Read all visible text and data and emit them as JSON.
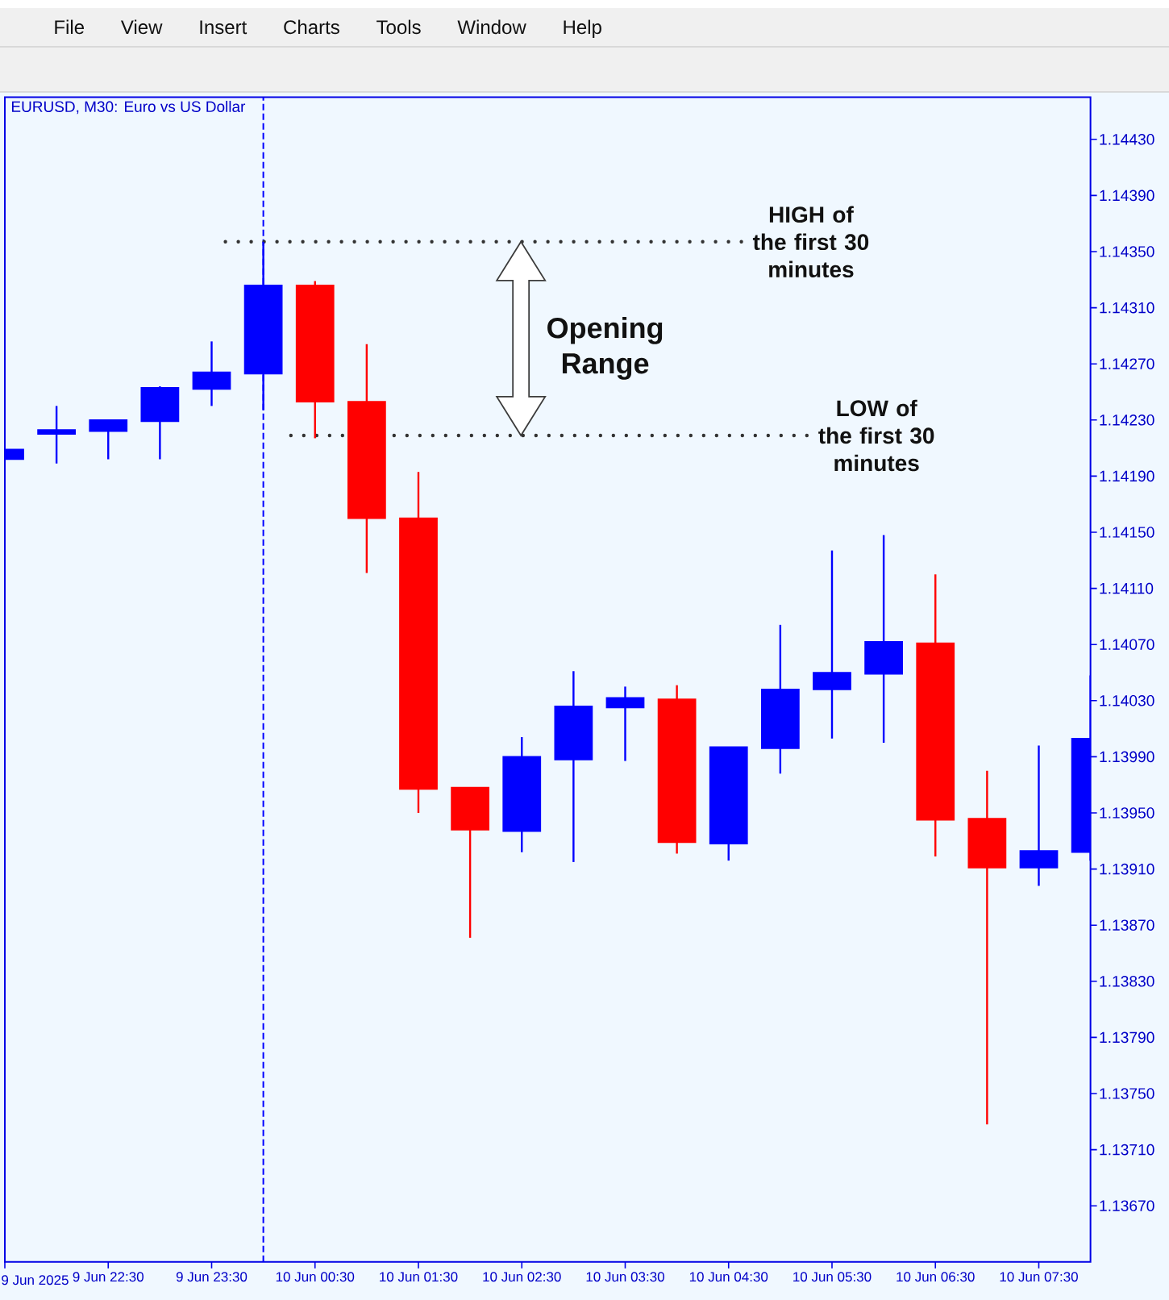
{
  "chart_data": {
    "type": "candlestick",
    "title": "EURUSD, M30: Euro vs US Dollar",
    "x": [
      "2025-06-09T21:30",
      "2025-06-09T22:00",
      "2025-06-09T22:30",
      "2025-06-09T23:00",
      "2025-06-09T23:30",
      "2025-06-10T00:00",
      "2025-06-10T00:30",
      "2025-06-10T01:00",
      "2025-06-10T01:30",
      "2025-06-10T02:00",
      "2025-06-10T02:30",
      "2025-06-10T03:00",
      "2025-06-10T03:30",
      "2025-06-10T04:00",
      "2025-06-10T04:30",
      "2025-06-10T05:00",
      "2025-06-10T05:30",
      "2025-06-10T06:00",
      "2025-06-10T06:30",
      "2025-06-10T07:00",
      "2025-06-10T07:30",
      "2025-06-10T08:00"
    ],
    "series": [
      {
        "type": "candlestick",
        "ohlc": [
          [
            1.14202,
            1.14209,
            1.14202,
            1.14209
          ],
          [
            1.1422,
            1.1424,
            1.14199,
            1.14223
          ],
          [
            1.14222,
            1.1423,
            1.14202,
            1.1423
          ],
          [
            1.14229,
            1.14254,
            1.14202,
            1.14253
          ],
          [
            1.14252,
            1.14286,
            1.1424,
            1.14264
          ],
          [
            1.14263,
            1.14357,
            1.14237,
            1.14326
          ],
          [
            1.14326,
            1.14329,
            1.14217,
            1.14243
          ],
          [
            1.14243,
            1.14284,
            1.14121,
            1.1416
          ],
          [
            1.1416,
            1.14193,
            1.1395,
            1.13967
          ],
          [
            1.13968,
            1.13968,
            1.13861,
            1.13938
          ],
          [
            1.13937,
            1.14004,
            1.13922,
            1.1399
          ],
          [
            1.13988,
            1.14051,
            1.13915,
            1.14026
          ],
          [
            1.14025,
            1.1404,
            1.13987,
            1.14032
          ],
          [
            1.14031,
            1.14041,
            1.13921,
            1.13929
          ],
          [
            1.13928,
            1.13997,
            1.13916,
            1.13997
          ],
          [
            1.13996,
            1.14084,
            1.13978,
            1.14038
          ],
          [
            1.14038,
            1.14137,
            1.14003,
            1.1405
          ],
          [
            1.14049,
            1.14148,
            1.14,
            1.14072
          ],
          [
            1.14071,
            1.1412,
            1.13919,
            1.13945
          ],
          [
            1.13946,
            1.1398,
            1.13728,
            1.13911
          ],
          [
            1.13911,
            1.13998,
            1.13898,
            1.13923
          ],
          [
            1.13922,
            1.14048,
            1.13916,
            1.14003
          ]
        ],
        "colors": [
          "#0000ff",
          "#0000ff",
          "#0000ff",
          "#0000ff",
          "#0000ff",
          "#0000ff",
          "#ff0000",
          "#ff0000",
          "#ff0000",
          "#ff0000",
          "#0000ff",
          "#0000ff",
          "#0000ff",
          "#ff0000",
          "#0000ff",
          "#0000ff",
          "#0000ff",
          "#0000ff",
          "#ff0000",
          "#ff0000",
          "#0000ff",
          "#0000ff"
        ]
      },
      {
        "type": "line",
        "name": "HIGH of the first 30 minutes",
        "x": [
          "2025-06-09T23:38",
          "2025-06-10T04:43"
        ],
        "values": [
          1.14357,
          1.14357
        ],
        "color": "#333333",
        "line_style": "dotted",
        "marker": "none"
      },
      {
        "type": "line",
        "name": "LOW of the first 30 minutes",
        "x": [
          "2025-06-10T00:16",
          "2025-06-10T05:21"
        ],
        "values": [
          1.14219,
          1.14219
        ],
        "color": "#333333",
        "line_style": "dotted",
        "marker": "none"
      }
    ],
    "xlim": [
      "2025-06-09T21:30",
      "2025-06-10T08:00"
    ],
    "xticks": [
      {
        "value": "2025-06-09T21:30",
        "label": "9 Jun 2025"
      },
      {
        "value": "2025-06-09T22:30",
        "label": "9 Jun 22:30"
      },
      {
        "value": "2025-06-09T23:30",
        "label": "9 Jun 23:30"
      },
      {
        "value": "2025-06-10T00:30",
        "label": "10 Jun 00:30"
      },
      {
        "value": "2025-06-10T01:30",
        "label": "10 Jun 01:30"
      },
      {
        "value": "2025-06-10T02:30",
        "label": "10 Jun 02:30"
      },
      {
        "value": "2025-06-10T03:30",
        "label": "10 Jun 03:30"
      },
      {
        "value": "2025-06-10T04:30",
        "label": "10 Jun 04:30"
      },
      {
        "value": "2025-06-10T05:30",
        "label": "10 Jun 05:30"
      },
      {
        "value": "2025-06-10T06:30",
        "label": "10 Jun 06:30"
      },
      {
        "value": "2025-06-10T07:30",
        "label": "10 Jun 07:30"
      }
    ],
    "ylim": [
      1.1363,
      1.1446
    ],
    "yticks": [
      {
        "value": 1.1367,
        "label": "1.13670"
      },
      {
        "value": 1.1371,
        "label": "1.13710"
      },
      {
        "value": 1.1375,
        "label": "1.13750"
      },
      {
        "value": 1.1379,
        "label": "1.13790"
      },
      {
        "value": 1.1383,
        "label": "1.13830"
      },
      {
        "value": 1.1387,
        "label": "1.13870"
      },
      {
        "value": 1.1391,
        "label": "1.13910"
      },
      {
        "value": 1.1395,
        "label": "1.13950"
      },
      {
        "value": 1.1399,
        "label": "1.13990"
      },
      {
        "value": 1.1403,
        "label": "1.14030"
      },
      {
        "value": 1.1407,
        "label": "1.14070"
      },
      {
        "value": 1.1411,
        "label": "1.14110"
      },
      {
        "value": 1.1415,
        "label": "1.14150"
      },
      {
        "value": 1.1419,
        "label": "1.14190"
      },
      {
        "value": 1.1423,
        "label": "1.14230"
      },
      {
        "value": 1.1427,
        "label": "1.14270"
      },
      {
        "value": 1.1431,
        "label": "1.14310"
      },
      {
        "value": 1.1435,
        "label": "1.14350"
      },
      {
        "value": 1.1439,
        "label": "1.14390"
      },
      {
        "value": 1.1443,
        "label": "1.14430"
      }
    ],
    "ref_lines": [
      {
        "axis": "x",
        "value": "2025-06-10T00:00",
        "color": "#0000ff",
        "line_style": "dashed"
      }
    ],
    "annotations": [
      "File",
      "View",
      "Insert",
      "Charts",
      "Tools",
      "Window",
      "Help",
      "Opening Range"
    ]
  }
}
